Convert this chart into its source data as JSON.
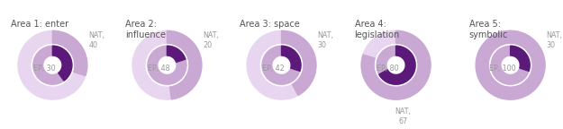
{
  "areas": [
    {
      "title": "Area 1: enter",
      "title2": "",
      "ep": 30,
      "nat": 40,
      "nat_label_bottom": false
    },
    {
      "title": "Area 2:",
      "title2": "influence",
      "ep": 48,
      "nat": 20,
      "nat_label_bottom": false
    },
    {
      "title": "Area 3: space",
      "title2": "",
      "ep": 42,
      "nat": 30,
      "nat_label_bottom": false
    },
    {
      "title": "Area 4:",
      "title2": "legislation",
      "ep": 80,
      "nat": 67,
      "nat_label_bottom": true
    },
    {
      "title": "Area 5:",
      "title2": "symbolic",
      "ep": 100,
      "nat": 30,
      "nat_label_bottom": false
    }
  ],
  "color_ep_fill": "#c9a8d4",
  "color_ep_rem": "#e8d5ef",
  "color_nat_fill": "#5b1a7a",
  "color_nat_rem": "#c9a8d4",
  "label_color": "#999999",
  "title_color": "#555555",
  "bg_color": "#ffffff",
  "ep_outer_r": 0.5,
  "ep_inner_r": 0.32,
  "nat_outer_r": 0.28,
  "nat_inner_r": 0.14,
  "fontsize_title": 7.0,
  "fontsize_label": 5.8
}
